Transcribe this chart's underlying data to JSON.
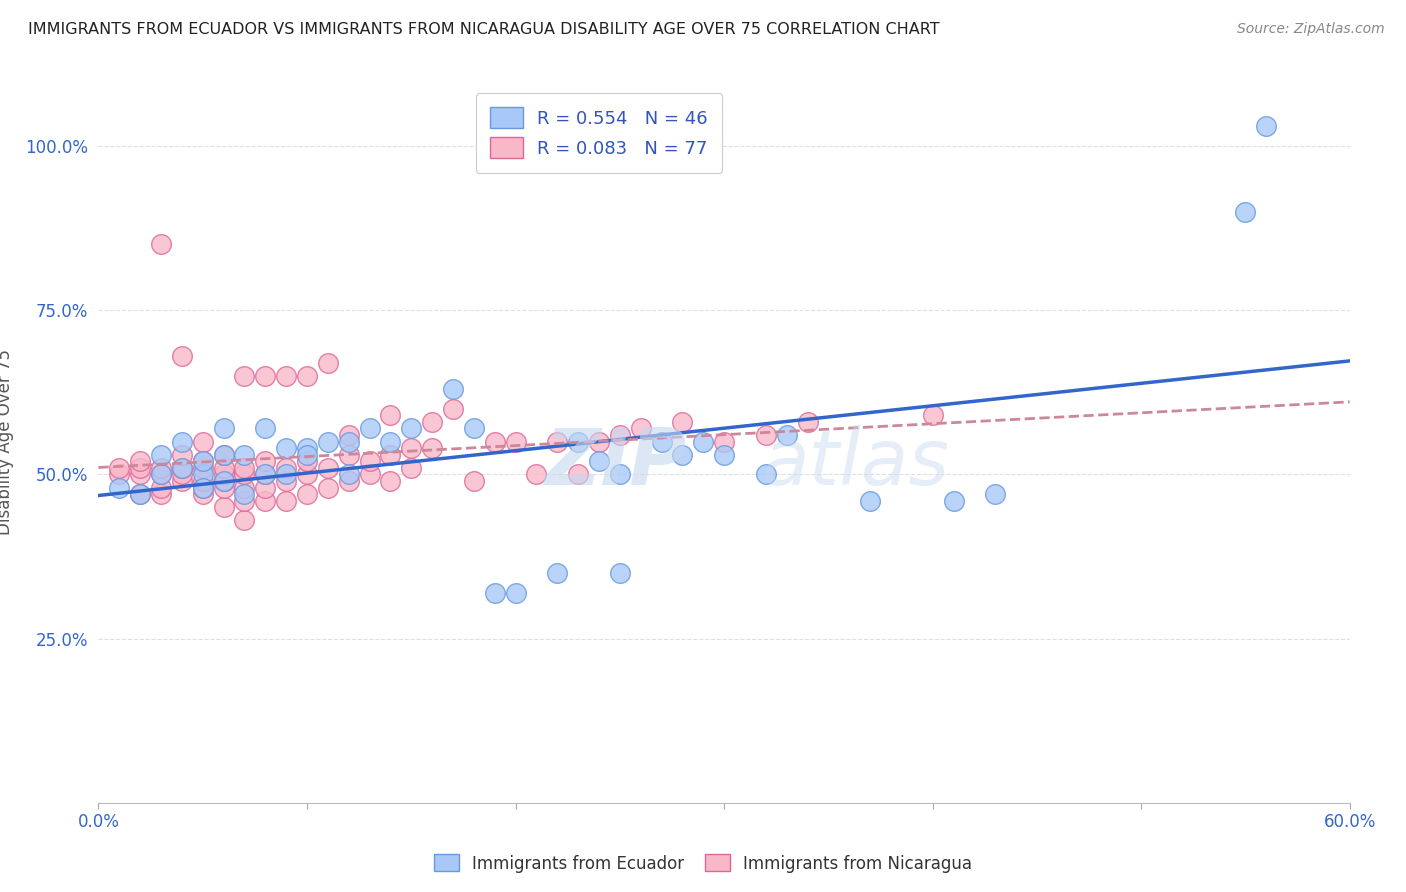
{
  "title": "IMMIGRANTS FROM ECUADOR VS IMMIGRANTS FROM NICARAGUA DISABILITY AGE OVER 75 CORRELATION CHART",
  "source": "Source: ZipAtlas.com",
  "ylabel": "Disability Age Over 75",
  "xlabel": "",
  "xlim": [
    0.0,
    0.6
  ],
  "ylim": [
    0.0,
    1.1
  ],
  "xticks": [
    0.0,
    0.1,
    0.2,
    0.3,
    0.4,
    0.5,
    0.6
  ],
  "xticklabels": [
    "0.0%",
    "",
    "",
    "",
    "",
    "",
    "60.0%"
  ],
  "yticks": [
    0.0,
    0.25,
    0.5,
    0.75,
    1.0
  ],
  "yticklabels": [
    "",
    "25.0%",
    "50.0%",
    "75.0%",
    "100.0%"
  ],
  "ecuador_R": 0.554,
  "ecuador_N": 46,
  "nicaragua_R": 0.083,
  "nicaragua_N": 77,
  "ecuador_color": "#a8c8f8",
  "ecuador_edge": "#6699dd",
  "nicaragua_color": "#f8b8c8",
  "nicaragua_edge": "#dd6699",
  "ecuador_line_color": "#3366cc",
  "nicaragua_line_color": "#cc8899",
  "legend_text_color": "#3355bb",
  "grid_color": "#e0e0e0",
  "ecuador_points_x": [
    0.01,
    0.02,
    0.03,
    0.03,
    0.04,
    0.04,
    0.05,
    0.05,
    0.05,
    0.06,
    0.06,
    0.06,
    0.07,
    0.07,
    0.08,
    0.08,
    0.09,
    0.09,
    0.1,
    0.1,
    0.11,
    0.12,
    0.12,
    0.13,
    0.14,
    0.15,
    0.17,
    0.18,
    0.19,
    0.2,
    0.22,
    0.23,
    0.24,
    0.25,
    0.25,
    0.27,
    0.28,
    0.29,
    0.3,
    0.32,
    0.33,
    0.37,
    0.41,
    0.43,
    0.55,
    0.56
  ],
  "ecuador_points_y": [
    0.48,
    0.47,
    0.5,
    0.53,
    0.51,
    0.55,
    0.5,
    0.48,
    0.52,
    0.49,
    0.53,
    0.57,
    0.47,
    0.53,
    0.5,
    0.57,
    0.5,
    0.54,
    0.54,
    0.53,
    0.55,
    0.5,
    0.55,
    0.57,
    0.55,
    0.57,
    0.63,
    0.57,
    0.32,
    0.32,
    0.35,
    0.55,
    0.52,
    0.5,
    0.35,
    0.55,
    0.53,
    0.55,
    0.53,
    0.5,
    0.56,
    0.46,
    0.46,
    0.47,
    0.9,
    1.03
  ],
  "nicaragua_points_x": [
    0.01,
    0.01,
    0.02,
    0.02,
    0.02,
    0.02,
    0.03,
    0.03,
    0.03,
    0.03,
    0.03,
    0.04,
    0.04,
    0.04,
    0.04,
    0.04,
    0.05,
    0.05,
    0.05,
    0.05,
    0.05,
    0.05,
    0.06,
    0.06,
    0.06,
    0.06,
    0.06,
    0.06,
    0.07,
    0.07,
    0.07,
    0.07,
    0.07,
    0.07,
    0.08,
    0.08,
    0.08,
    0.08,
    0.08,
    0.09,
    0.09,
    0.09,
    0.09,
    0.1,
    0.1,
    0.1,
    0.1,
    0.11,
    0.11,
    0.11,
    0.12,
    0.12,
    0.12,
    0.13,
    0.13,
    0.14,
    0.14,
    0.14,
    0.15,
    0.15,
    0.16,
    0.16,
    0.17,
    0.18,
    0.19,
    0.2,
    0.21,
    0.22,
    0.23,
    0.24,
    0.25,
    0.26,
    0.28,
    0.3,
    0.32,
    0.34,
    0.4
  ],
  "nicaragua_points_y": [
    0.5,
    0.51,
    0.47,
    0.5,
    0.51,
    0.52,
    0.47,
    0.48,
    0.5,
    0.51,
    0.85,
    0.49,
    0.5,
    0.51,
    0.53,
    0.68,
    0.47,
    0.48,
    0.49,
    0.51,
    0.52,
    0.55,
    0.45,
    0.48,
    0.49,
    0.5,
    0.51,
    0.53,
    0.43,
    0.46,
    0.48,
    0.5,
    0.51,
    0.65,
    0.46,
    0.48,
    0.5,
    0.52,
    0.65,
    0.46,
    0.49,
    0.51,
    0.65,
    0.47,
    0.5,
    0.52,
    0.65,
    0.48,
    0.51,
    0.67,
    0.49,
    0.53,
    0.56,
    0.5,
    0.52,
    0.49,
    0.53,
    0.59,
    0.51,
    0.54,
    0.54,
    0.58,
    0.6,
    0.49,
    0.55,
    0.55,
    0.5,
    0.55,
    0.5,
    0.55,
    0.56,
    0.57,
    0.58,
    0.55,
    0.56,
    0.58,
    0.59
  ],
  "watermark_zip": "ZIP",
  "watermark_atlas": "atlas",
  "background_color": "#ffffff"
}
